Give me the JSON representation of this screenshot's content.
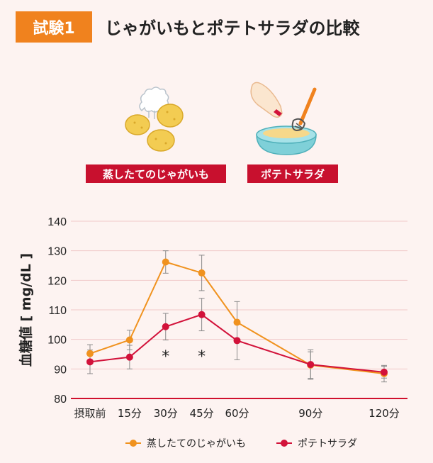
{
  "header": {
    "badge": "試験1",
    "title": "じゃがいもとポテトサラダの比較"
  },
  "illustrations": {
    "left_label": "蒸したてのじゃがいも",
    "right_label": "ポテトサラダ",
    "left_icon": "steamed-potatoes-icon",
    "right_icon": "potato-salad-bowl-icon"
  },
  "colors": {
    "orange": "#f0921e",
    "red": "#d2123a",
    "badge": "#f0821e",
    "label_bg": "#c8102e",
    "grid": "#f1c9c9",
    "axis": "#d0102e",
    "error_bar": "#8a8a8a"
  },
  "chart_data": {
    "type": "line",
    "title": "",
    "ylabel": "血糖値 [ mg/dL ]",
    "xlabel": "",
    "categories": [
      "摂取前",
      "15分",
      "30分",
      "45分",
      "60分",
      "90分",
      "120分"
    ],
    "x_minutes": [
      0,
      15,
      30,
      45,
      60,
      90,
      120
    ],
    "ylim": [
      80,
      140
    ],
    "yticks": [
      80,
      90,
      100,
      110,
      120,
      130,
      140
    ],
    "grid": true,
    "legend": "bottom",
    "series": [
      {
        "name": "蒸したてのじゃがいも",
        "color": "#f0921e",
        "values": [
          95.2,
          99.8,
          126.2,
          122.5,
          105.8,
          91.3,
          88.4
        ],
        "errors": [
          3.0,
          3.3,
          3.8,
          6.0,
          7.0,
          4.5,
          2.8
        ]
      },
      {
        "name": "ポテトサラダ",
        "color": "#d2123a",
        "values": [
          92.4,
          94.0,
          104.3,
          108.4,
          99.6,
          91.5,
          88.9
        ],
        "errors": [
          4.0,
          4.0,
          4.5,
          5.5,
          6.5,
          5.0,
          2.0
        ]
      }
    ],
    "significance": [
      {
        "category": "30分",
        "mark": "*"
      },
      {
        "category": "45分",
        "mark": "*"
      }
    ]
  }
}
